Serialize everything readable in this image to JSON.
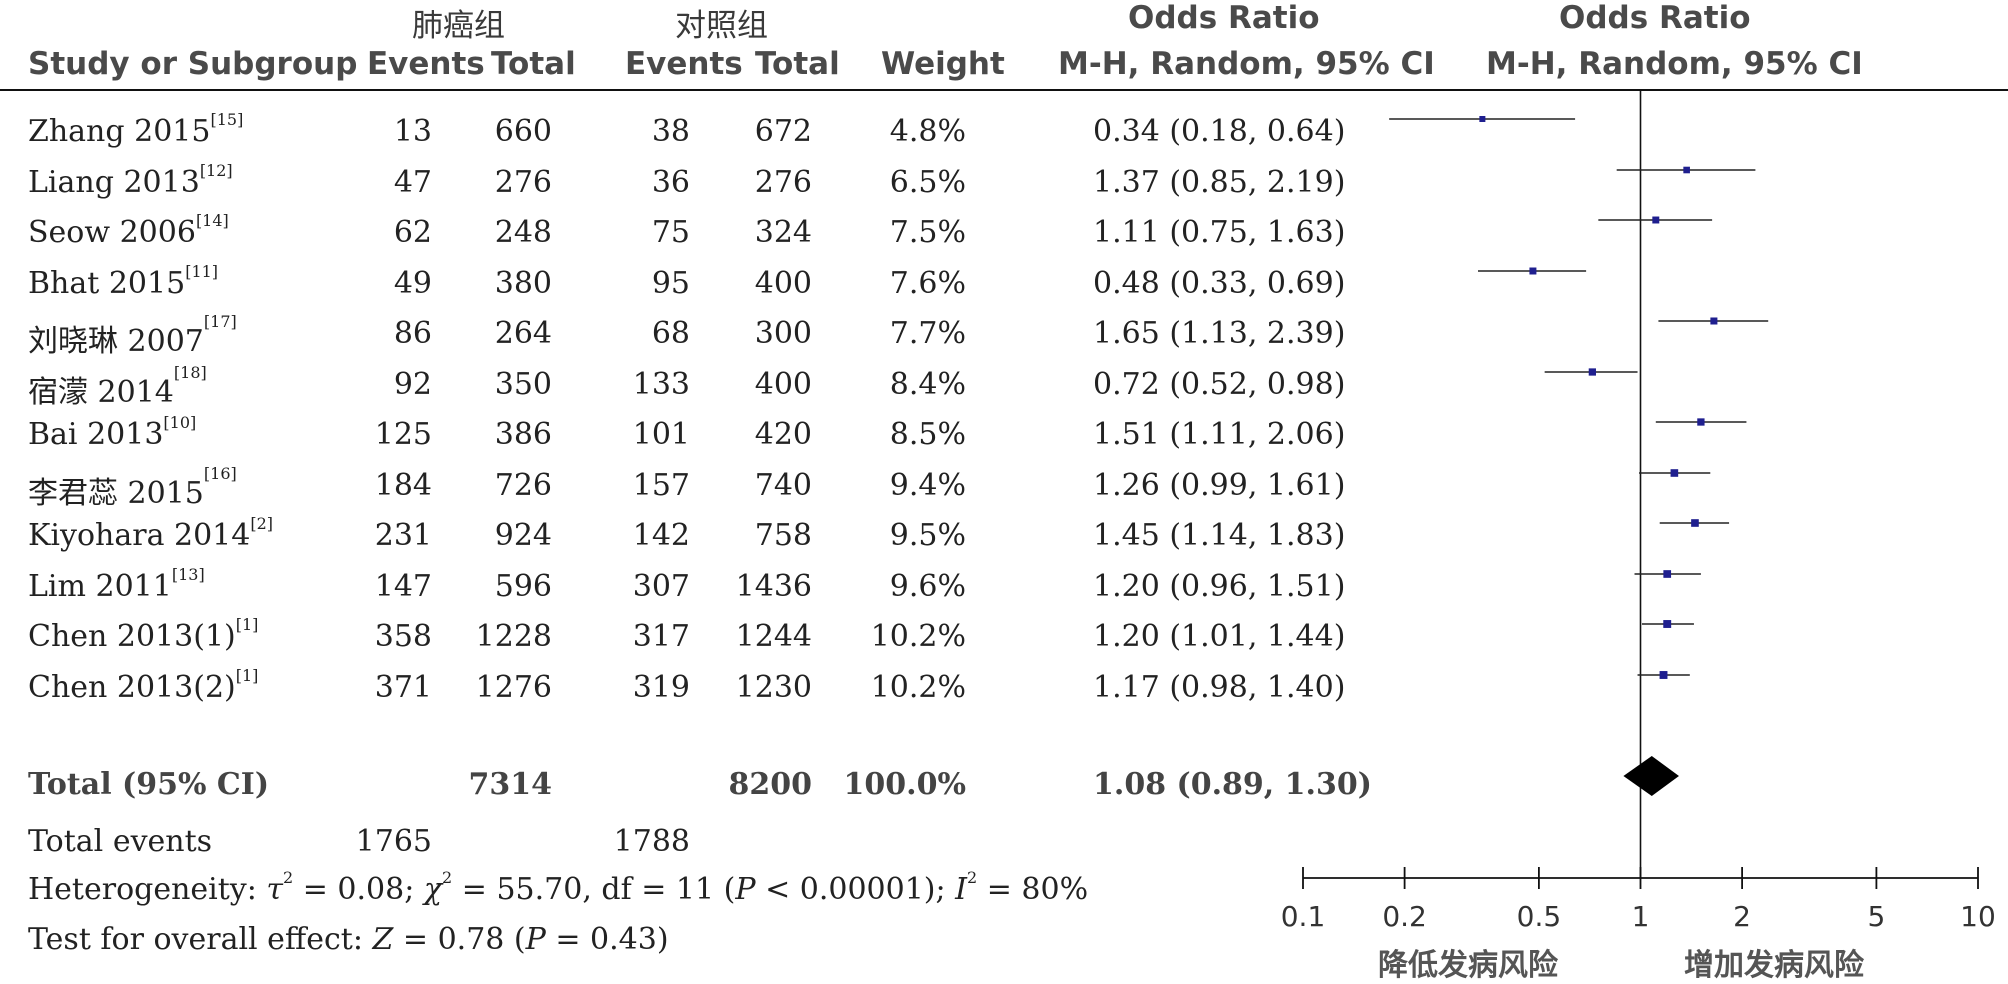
{
  "headers": {
    "group_case": "肺癌组",
    "group_control": "对照组",
    "study": "Study or Subgroup",
    "events1": "Events",
    "total1": "Total",
    "events2": "Events",
    "total2": "Total",
    "weight": "Weight",
    "or_title": "Odds Ratio",
    "or_method": "M-H, Random, 95% CI",
    "plot_title": "Odds Ratio",
    "plot_method": "M-H, Random, 95% CI"
  },
  "rows": [
    {
      "study": "Zhang 2015",
      "ref": "[15]",
      "e1": "13",
      "t1": "660",
      "e2": "38",
      "t2": "672",
      "weight": "4.8%",
      "ci": "0.34 (0.18, 0.64)"
    },
    {
      "study": "Liang 2013",
      "ref": "[12]",
      "e1": "47",
      "t1": "276",
      "e2": "36",
      "t2": "276",
      "weight": "6.5%",
      "ci": "1.37 (0.85, 2.19)"
    },
    {
      "study": "Seow 2006",
      "ref": "[14]",
      "e1": "62",
      "t1": "248",
      "e2": "75",
      "t2": "324",
      "weight": "7.5%",
      "ci": "1.11 (0.75, 1.63)"
    },
    {
      "study": "Bhat 2015",
      "ref": "[11]",
      "e1": "49",
      "t1": "380",
      "e2": "95",
      "t2": "400",
      "weight": "7.6%",
      "ci": "0.48 (0.33, 0.69)"
    },
    {
      "study": "刘晓琳 2007",
      "ref": "[17]",
      "e1": "86",
      "t1": "264",
      "e2": "68",
      "t2": "300",
      "weight": "7.7%",
      "ci": "1.65 (1.13, 2.39)"
    },
    {
      "study": "宿濛 2014",
      "ref": "[18]",
      "e1": "92",
      "t1": "350",
      "e2": "133",
      "t2": "400",
      "weight": "8.4%",
      "ci": "0.72 (0.52, 0.98)"
    },
    {
      "study": "Bai 2013",
      "ref": "[10]",
      "e1": "125",
      "t1": "386",
      "e2": "101",
      "t2": "420",
      "weight": "8.5%",
      "ci": "1.51 (1.11, 2.06)"
    },
    {
      "study": "李君蕊 2015",
      "ref": "[16]",
      "e1": "184",
      "t1": "726",
      "e2": "157",
      "t2": "740",
      "weight": "9.4%",
      "ci": "1.26 (0.99, 1.61)"
    },
    {
      "study": "Kiyohara 2014",
      "ref": "[2]",
      "e1": "231",
      "t1": "924",
      "e2": "142",
      "t2": "758",
      "weight": "9.5%",
      "ci": "1.45 (1.14, 1.83)"
    },
    {
      "study": "Lim 2011",
      "ref": "[13]",
      "e1": "147",
      "t1": "596",
      "e2": "307",
      "t2": "1436",
      "weight": "9.6%",
      "ci": "1.20 (0.96, 1.51)"
    },
    {
      "study": "Chen 2013(1)",
      "ref": "[1]",
      "e1": "358",
      "t1": "1228",
      "e2": "317",
      "t2": "1244",
      "weight": "10.2%",
      "ci": "1.20 (1.01, 1.44)"
    },
    {
      "study": "Chen 2013(2)",
      "ref": "[1]",
      "e1": "371",
      "t1": "1276",
      "e2": "319",
      "t2": "1230",
      "weight": "10.2%",
      "ci": "1.17 (0.98, 1.40)"
    }
  ],
  "total": {
    "label": "Total (95% CI)",
    "t1": "7314",
    "t2": "8200",
    "weight": "100.0%",
    "ci": "1.08 (0.89, 1.30)"
  },
  "total_events": {
    "label": "Total events",
    "e1": "1765",
    "e2": "1788"
  },
  "heterogeneity": {
    "prefix": "Heterogeneity: ",
    "tau2_sym": "τ",
    "tau2_val": " = 0.08; ",
    "chi2_sym": "χ",
    "chi2_val": " = 55.70, df = 11 (",
    "p_sym": "P",
    "p_val": " < 0.00001); ",
    "i2_sym": "I",
    "i2_val": " = 80%"
  },
  "overall_effect": {
    "prefix": "Test for overall effect: ",
    "z_sym": "Z",
    "z_val": " = 0.78 (",
    "p_sym": "P",
    "p_val": " = 0.43)"
  },
  "axis_captions": {
    "left": "降低发病风险",
    "right": "增加发病风险"
  },
  "chart_data": {
    "type": "forest",
    "scale": "log",
    "xlim": [
      0.1,
      10
    ],
    "ticks": [
      0.1,
      0.2,
      0.5,
      1,
      2,
      5,
      10
    ],
    "tick_labels": [
      "0.1",
      "0.2",
      "0.5",
      "1",
      "2",
      "5",
      "10"
    ],
    "reference_line": 1,
    "studies": [
      {
        "or": 0.34,
        "lo": 0.18,
        "hi": 0.64,
        "weight": 4.8
      },
      {
        "or": 1.37,
        "lo": 0.85,
        "hi": 2.19,
        "weight": 6.5
      },
      {
        "or": 1.11,
        "lo": 0.75,
        "hi": 1.63,
        "weight": 7.5
      },
      {
        "or": 0.48,
        "lo": 0.33,
        "hi": 0.69,
        "weight": 7.6
      },
      {
        "or": 1.65,
        "lo": 1.13,
        "hi": 2.39,
        "weight": 7.7
      },
      {
        "or": 0.72,
        "lo": 0.52,
        "hi": 0.98,
        "weight": 8.4
      },
      {
        "or": 1.51,
        "lo": 1.11,
        "hi": 2.06,
        "weight": 8.5
      },
      {
        "or": 1.26,
        "lo": 0.99,
        "hi": 1.61,
        "weight": 9.4
      },
      {
        "or": 1.45,
        "lo": 1.14,
        "hi": 1.83,
        "weight": 9.5
      },
      {
        "or": 1.2,
        "lo": 0.96,
        "hi": 1.51,
        "weight": 9.6
      },
      {
        "or": 1.2,
        "lo": 1.01,
        "hi": 1.44,
        "weight": 10.2
      },
      {
        "or": 1.17,
        "lo": 0.98,
        "hi": 1.4,
        "weight": 10.2
      }
    ],
    "pooled": {
      "or": 1.08,
      "lo": 0.89,
      "hi": 1.3
    },
    "marker_color": "#1f1f8f",
    "line_color": "#222222"
  }
}
